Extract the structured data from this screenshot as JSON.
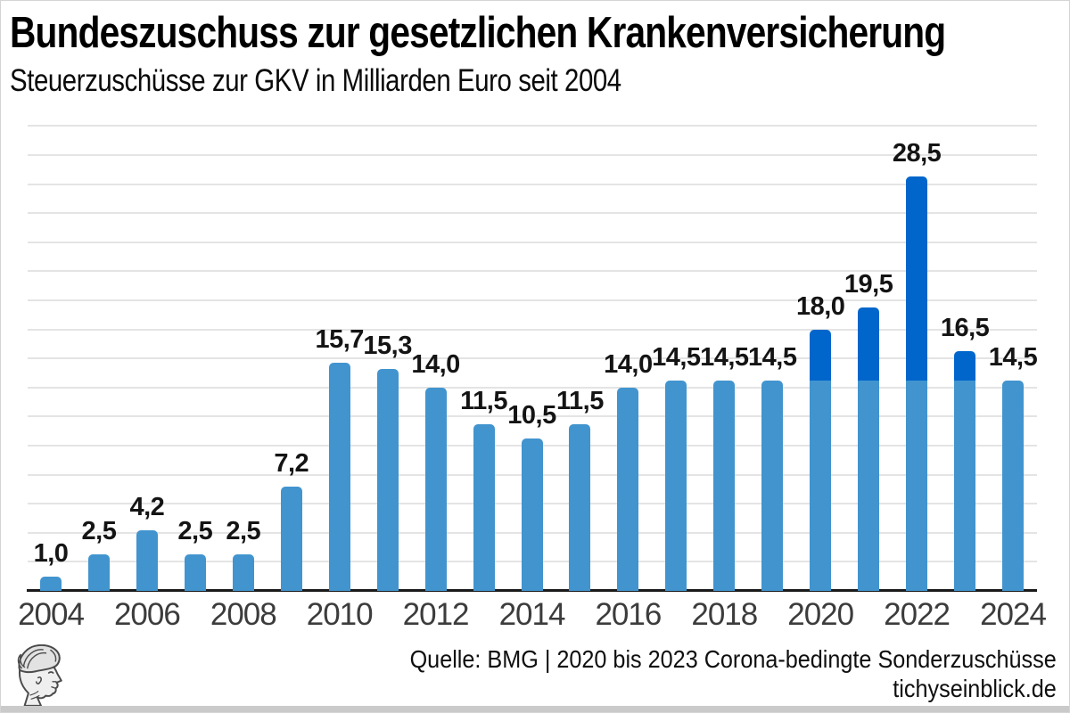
{
  "header": {
    "title": "Bundeszuschuss zur gesetzlichen Krankenversicherung",
    "subtitle": "Steuerzuschüsse zur GKV in Milliarden Euro seit 2004"
  },
  "footer": {
    "source": "Quelle: BMG | 2020 bis 2023 Corona-bedingte Sonderzuschüsse",
    "website": "tichyseinblick.de",
    "logo": "hermes-head-engraving"
  },
  "colors": {
    "bar_base": "#4294ce",
    "bar_corona": "#0066cc",
    "gridline": "#e4e4e4",
    "axis": "#1a1a1a",
    "value_label": "#141414",
    "tick_label": "#3c3c3c"
  },
  "chart_data": {
    "type": "bar",
    "stacked": true,
    "title": "Bundeszuschuss zur gesetzlichen Krankenversicherung",
    "subtitle": "Steuerzuschüsse zur GKV in Milliarden Euro seit 2004",
    "unit": "Milliarden Euro",
    "x": [
      2004,
      2005,
      2006,
      2007,
      2008,
      2009,
      2010,
      2011,
      2012,
      2013,
      2014,
      2015,
      2016,
      2017,
      2018,
      2019,
      2020,
      2021,
      2022,
      2023,
      2024
    ],
    "series": [
      {
        "name": "Steuerzuschuss",
        "color": "#4294ce",
        "values": [
          1.0,
          2.5,
          4.2,
          2.5,
          2.5,
          7.2,
          15.7,
          15.3,
          14.0,
          11.5,
          10.5,
          11.5,
          14.0,
          14.5,
          14.5,
          14.5,
          14.5,
          14.5,
          14.5,
          14.5,
          14.5
        ]
      },
      {
        "name": "Corona-bedingte Sonderzuschüsse",
        "color": "#0066cc",
        "values": [
          0,
          0,
          0,
          0,
          0,
          0,
          0,
          0,
          0,
          0,
          0,
          0,
          0,
          0,
          0,
          0,
          3.5,
          5.0,
          14.0,
          2.0,
          0
        ]
      }
    ],
    "totals": [
      1.0,
      2.5,
      4.2,
      2.5,
      2.5,
      7.2,
      15.7,
      15.3,
      14.0,
      11.5,
      10.5,
      11.5,
      14.0,
      14.5,
      14.5,
      14.5,
      18.0,
      19.5,
      28.5,
      16.5,
      14.5
    ],
    "labels": [
      "1,0",
      "2,5",
      "4,2",
      "2,5",
      "2,5",
      "7,2",
      "15,7",
      "15,3",
      "14,0",
      "11,5",
      "10,5",
      "11,5",
      "14,0",
      "14,5",
      "14,5",
      "14,5",
      "18,0",
      "19,5",
      "28,5",
      "16,5",
      "14,5"
    ],
    "xticks": [
      2004,
      2006,
      2008,
      2010,
      2012,
      2014,
      2016,
      2018,
      2020,
      2022,
      2024
    ],
    "ylim": [
      0,
      32
    ],
    "grid_step": 2,
    "grid": true,
    "legend": false,
    "yaxis_labels": false
  }
}
